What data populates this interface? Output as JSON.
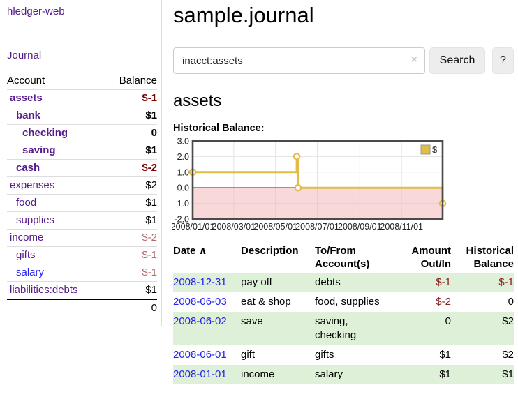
{
  "sidebar": {
    "brand": "hledger-web",
    "journal_link": "Journal",
    "accounts_table": {
      "headers": [
        "Account",
        "Balance"
      ],
      "rows": [
        {
          "account": "assets",
          "balance": "$-1",
          "level": 1,
          "bold": true
        },
        {
          "account": "bank",
          "balance": "$1",
          "level": 2,
          "bold": true
        },
        {
          "account": "checking",
          "balance": "0",
          "level": 3,
          "bold": true
        },
        {
          "account": "saving",
          "balance": "$1",
          "level": 3,
          "bold": true
        },
        {
          "account": "cash",
          "balance": "$-2",
          "level": 2,
          "bold": true
        },
        {
          "account": "expenses",
          "balance": "$2",
          "level": 1,
          "bold": false
        },
        {
          "account": "food",
          "balance": "$1",
          "level": 2,
          "bold": false
        },
        {
          "account": "supplies",
          "balance": "$1",
          "level": 2,
          "bold": false
        },
        {
          "account": "income",
          "balance": "$-2",
          "level": 1,
          "bold": false
        },
        {
          "account": "gifts",
          "balance": "$-1",
          "level": 2,
          "bold": false
        },
        {
          "account": "salary",
          "balance": "$-1",
          "level": 2,
          "bold": false,
          "unvisited": true
        },
        {
          "account": "liabilities:debts",
          "balance": "$1",
          "level": 1,
          "bold": false
        }
      ],
      "total": "0"
    }
  },
  "header": {
    "title": "sample.journal"
  },
  "search": {
    "value": "inacct:assets",
    "clear_icon": "×",
    "button_label": "Search",
    "help_label": "?"
  },
  "account_page": {
    "title": "assets",
    "chart_label": "Historical Balance:"
  },
  "chart_data": {
    "type": "line",
    "step": true,
    "title": "Historical Balance:",
    "series": [
      {
        "name": "$",
        "points": [
          [
            "2008-01-01",
            1
          ],
          [
            "2008-06-01",
            2
          ],
          [
            "2008-06-03",
            0
          ],
          [
            "2008-12-31",
            -1
          ]
        ]
      }
    ],
    "x_range": [
      "2008-01-01",
      "2008-12-31"
    ],
    "x_ticks": [
      "2008/01/01",
      "2008/03/01",
      "2008/05/01",
      "2008/07/01",
      "2008/09/01",
      "2008/11/01"
    ],
    "y_ticks": [
      "3.0",
      "2.0",
      "1.0",
      "0.0",
      "-1.0",
      "-2.0"
    ],
    "ylim": [
      -2,
      3
    ],
    "grid": true,
    "legend": {
      "label": "$",
      "position": "top-right"
    },
    "line_color": "#e3bc45",
    "negative_region_color": "#f2b8b8",
    "zero_line_color": "#8b0000"
  },
  "register_table": {
    "sort_icon": "∧",
    "headers": [
      {
        "label": "Date",
        "sorted": true
      },
      {
        "label": "Description"
      },
      {
        "label": "To/From Account(s)"
      },
      {
        "label": "Amount Out/In",
        "align": "right"
      },
      {
        "label": "Historical Balance",
        "align": "right"
      }
    ],
    "rows": [
      {
        "date": "2008-12-31",
        "description": "pay off",
        "accounts": "debts",
        "amount": "$-1",
        "balance": "$-1"
      },
      {
        "date": "2008-06-03",
        "description": "eat & shop",
        "accounts": "food, supplies",
        "amount": "$-2",
        "balance": "0"
      },
      {
        "date": "2008-06-02",
        "description": "save",
        "accounts": "saving, checking",
        "amount": "0",
        "balance": "$2"
      },
      {
        "date": "2008-06-01",
        "description": "gift",
        "accounts": "gifts",
        "amount": "$1",
        "balance": "$2"
      },
      {
        "date": "2008-01-01",
        "description": "income",
        "accounts": "salary",
        "amount": "$1",
        "balance": "$1"
      }
    ]
  },
  "colors": {
    "visited_link_purple": "#551a8b",
    "link_blue": "#2222ee",
    "negative_bold": "#800000",
    "negative_soft": "#b26a6a",
    "negative_register": "#8b1d1d",
    "row_green": "#dff0d8",
    "button_bg": "#ededed",
    "chart_line": "#e3bc45",
    "chart_negative_fill": "#f8dcdc",
    "chart_zero_line": "#8b0000"
  }
}
